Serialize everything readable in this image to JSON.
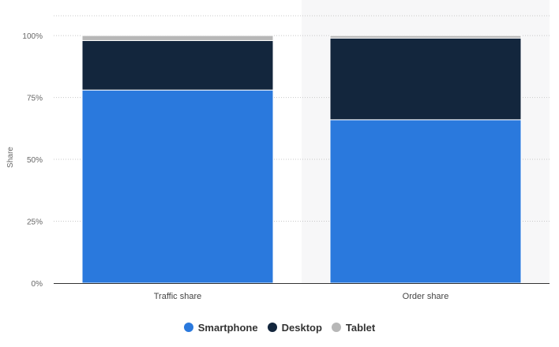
{
  "chart_data": {
    "type": "bar",
    "stacked": true,
    "categories": [
      "Traffic share",
      "Order share"
    ],
    "series": [
      {
        "name": "Smartphone",
        "color": "#2a79dd",
        "values": [
          78,
          66
        ]
      },
      {
        "name": "Desktop",
        "color": "#13263d",
        "values": [
          20,
          33
        ]
      },
      {
        "name": "Tablet",
        "color": "#b7b7b7",
        "values": [
          2,
          1
        ]
      }
    ],
    "ylabel": "Share",
    "xlabel": "",
    "ylim": [
      0,
      100
    ],
    "yticks": [
      {
        "value": 0,
        "label": "0%"
      },
      {
        "value": 25,
        "label": "25%"
      },
      {
        "value": 50,
        "label": "50%"
      },
      {
        "value": 75,
        "label": "75%"
      },
      {
        "value": 100,
        "label": "100%"
      }
    ],
    "highlighted_category": "Order share",
    "grid": true,
    "legend": "bottom-center"
  }
}
